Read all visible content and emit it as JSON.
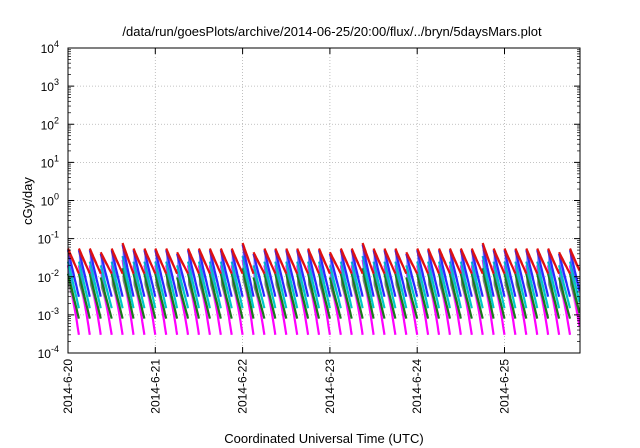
{
  "chart_data": {
    "type": "area",
    "title": "/data/run/goesPlots/archive/2014-06-25/20:00/flux/../bryn/5daysMars.plot",
    "xlabel": "Coordinated Universal Time (UTC)",
    "ylabel": "cGy/day",
    "yscale": "log",
    "ylim": [
      0.0001,
      10000
    ],
    "xlim": [
      "2014-06-20",
      "2014-06-25 20:00"
    ],
    "grid": true,
    "legend": "none",
    "x_tick_labels": [
      "2014-6-20",
      "2014-6-21",
      "2014-6-22",
      "2014-6-23",
      "2014-6-24",
      "2014-6-25"
    ],
    "y_tick_labels": [
      {
        "base": "10",
        "exp": "-4"
      },
      {
        "base": "10",
        "exp": "-3"
      },
      {
        "base": "10",
        "exp": "-2"
      },
      {
        "base": "10",
        "exp": "-1"
      },
      {
        "base": "10",
        "exp": "0"
      },
      {
        "base": "10",
        "exp": "1"
      },
      {
        "base": "10",
        "exp": "2"
      },
      {
        "base": "10",
        "exp": "3"
      },
      {
        "base": "10",
        "exp": "4"
      }
    ],
    "cycles_per_day": 8,
    "series": [
      {
        "color": "#ff00ff",
        "peak": 0.02,
        "trough": 0.0003
      },
      {
        "color": "#1a7a1a",
        "peak": 0.012,
        "trough": 0.0008
      },
      {
        "color": "#00c8c8",
        "peak": 0.025,
        "trough": 0.0015
      },
      {
        "color": "#2a2aff",
        "peak": 0.05,
        "trough": 0.003
      },
      {
        "color": "#e01010",
        "peak": 0.055,
        "trough": 0.012
      }
    ]
  }
}
